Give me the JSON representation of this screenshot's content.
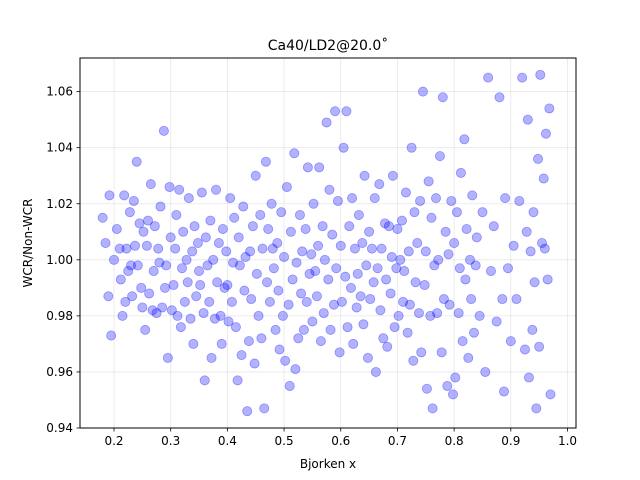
{
  "chart_data": {
    "type": "scatter",
    "title": "Ca40/LD2@20.0˚",
    "xlabel": "Bjorken x",
    "ylabel": "WCR/Non-WCR",
    "xlim": [
      0.14,
      1.015
    ],
    "ylim": [
      0.94,
      1.072
    ],
    "xticks": [
      "0.2",
      "0.3",
      "0.4",
      "0.5",
      "0.6",
      "0.7",
      "0.8",
      "0.9",
      "1.0"
    ],
    "yticks": [
      "0.94",
      "0.96",
      "0.98",
      "1.00",
      "1.02",
      "1.04",
      "1.06"
    ],
    "grid": true,
    "point_color": "#0000ff",
    "series": [
      {
        "points": [
          [
            0.18,
            1.015
          ],
          [
            0.185,
            1.006
          ],
          [
            0.19,
            0.987
          ],
          [
            0.192,
            1.023
          ],
          [
            0.195,
            0.973
          ],
          [
            0.2,
            1.0
          ],
          [
            0.205,
            1.011
          ],
          [
            0.21,
            1.004
          ],
          [
            0.212,
            0.993
          ],
          [
            0.215,
            0.98
          ],
          [
            0.218,
            1.023
          ],
          [
            0.22,
            0.985
          ],
          [
            0.222,
            1.004
          ],
          [
            0.225,
            0.996
          ],
          [
            0.228,
            1.017
          ],
          [
            0.23,
            0.998
          ],
          [
            0.232,
            0.987
          ],
          [
            0.235,
            1.021
          ],
          [
            0.237,
            1.005
          ],
          [
            0.24,
            1.035
          ],
          [
            0.242,
            0.998
          ],
          [
            0.245,
            1.013
          ],
          [
            0.248,
            0.99
          ],
          [
            0.25,
            0.983
          ],
          [
            0.252,
            1.01
          ],
          [
            0.255,
            0.975
          ],
          [
            0.258,
            1.005
          ],
          [
            0.26,
            1.014
          ],
          [
            0.262,
            0.988
          ],
          [
            0.265,
            1.027
          ],
          [
            0.268,
            0.982
          ],
          [
            0.27,
            0.996
          ],
          [
            0.272,
            1.012
          ],
          [
            0.275,
            0.981
          ],
          [
            0.278,
            1.004
          ],
          [
            0.28,
            0.999
          ],
          [
            0.282,
            1.019
          ],
          [
            0.285,
            0.983
          ],
          [
            0.288,
            1.046
          ],
          [
            0.29,
            0.99
          ],
          [
            0.292,
            0.998
          ],
          [
            0.295,
            0.965
          ],
          [
            0.298,
            1.026
          ],
          [
            0.3,
            1.008
          ],
          [
            0.302,
            0.982
          ],
          [
            0.305,
            0.991
          ],
          [
            0.308,
            1.004
          ],
          [
            0.31,
            1.016
          ],
          [
            0.312,
            0.98
          ],
          [
            0.315,
            1.025
          ],
          [
            0.318,
            0.976
          ],
          [
            0.32,
            0.997
          ],
          [
            0.322,
            1.01
          ],
          [
            0.325,
            0.985
          ],
          [
            0.328,
            1.0
          ],
          [
            0.33,
            0.992
          ],
          [
            0.332,
            1.022
          ],
          [
            0.335,
            0.979
          ],
          [
            0.338,
            1.003
          ],
          [
            0.34,
            0.97
          ],
          [
            0.342,
            1.012
          ],
          [
            0.345,
            0.987
          ],
          [
            0.348,
            1.006
          ],
          [
            0.35,
            0.996
          ],
          [
            0.352,
            0.991
          ],
          [
            0.355,
            1.024
          ],
          [
            0.358,
            0.981
          ],
          [
            0.36,
            0.957
          ],
          [
            0.362,
            1.008
          ],
          [
            0.365,
            0.998
          ],
          [
            0.368,
            0.985
          ],
          [
            0.37,
            1.014
          ],
          [
            0.372,
            0.965
          ],
          [
            0.375,
            1.0
          ],
          [
            0.378,
            0.979
          ],
          [
            0.38,
            1.025
          ],
          [
            0.382,
            0.992
          ],
          [
            0.385,
            1.006
          ],
          [
            0.388,
            0.98
          ],
          [
            0.39,
            0.97
          ],
          [
            0.392,
            1.011
          ],
          [
            0.395,
            0.99
          ],
          [
            0.398,
            1.003
          ],
          [
            0.4,
            0.991
          ],
          [
            0.402,
            0.978
          ],
          [
            0.405,
            1.022
          ],
          [
            0.408,
            0.985
          ],
          [
            0.41,
            0.999
          ],
          [
            0.412,
            1.015
          ],
          [
            0.415,
            0.976
          ],
          [
            0.418,
            0.957
          ],
          [
            0.42,
            1.008
          ],
          [
            0.422,
            0.998
          ],
          [
            0.425,
            0.966
          ],
          [
            0.428,
            1.019
          ],
          [
            0.43,
            0.989
          ],
          [
            0.432,
            1.001
          ],
          [
            0.435,
            0.946
          ],
          [
            0.438,
            0.971
          ],
          [
            0.44,
            1.003
          ],
          [
            0.442,
            0.986
          ],
          [
            0.445,
            1.012
          ],
          [
            0.448,
            0.963
          ],
          [
            0.45,
            1.03
          ],
          [
            0.452,
            0.995
          ],
          [
            0.455,
            0.98
          ],
          [
            0.458,
            1.016
          ],
          [
            0.46,
            0.972
          ],
          [
            0.462,
            1.004
          ],
          [
            0.465,
            0.947
          ],
          [
            0.468,
            1.035
          ],
          [
            0.47,
            0.992
          ],
          [
            0.472,
            1.011
          ],
          [
            0.475,
            0.985
          ],
          [
            0.478,
            1.02
          ],
          [
            0.48,
            1.004
          ],
          [
            0.482,
            0.997
          ],
          [
            0.485,
            0.975
          ],
          [
            0.488,
            1.006
          ],
          [
            0.49,
            0.989
          ],
          [
            0.492,
            0.968
          ],
          [
            0.495,
            1.017
          ],
          [
            0.498,
            0.98
          ],
          [
            0.5,
            1.001
          ],
          [
            0.502,
            0.964
          ],
          [
            0.505,
            1.026
          ],
          [
            0.508,
            0.984
          ],
          [
            0.51,
            0.955
          ],
          [
            0.512,
            1.01
          ],
          [
            0.515,
            0.993
          ],
          [
            0.518,
            1.038
          ],
          [
            0.52,
            0.961
          ],
          [
            0.522,
            0.999
          ],
          [
            0.525,
            0.972
          ],
          [
            0.528,
            1.016
          ],
          [
            0.53,
            0.988
          ],
          [
            0.532,
            1.003
          ],
          [
            0.535,
            0.975
          ],
          [
            0.538,
            1.011
          ],
          [
            0.54,
            0.985
          ],
          [
            0.542,
            1.033
          ],
          [
            0.545,
            0.995
          ],
          [
            0.548,
            1.002
          ],
          [
            0.55,
            0.978
          ],
          [
            0.552,
            1.02
          ],
          [
            0.555,
            0.996
          ],
          [
            0.558,
            0.987
          ],
          [
            0.56,
            1.005
          ],
          [
            0.562,
            1.033
          ],
          [
            0.565,
            0.971
          ],
          [
            0.568,
            1.012
          ],
          [
            0.57,
            0.981
          ],
          [
            0.572,
            1.0
          ],
          [
            0.575,
            1.049
          ],
          [
            0.578,
            0.993
          ],
          [
            0.58,
            1.025
          ],
          [
            0.582,
            0.975
          ],
          [
            0.585,
            1.009
          ],
          [
            0.588,
            0.984
          ],
          [
            0.59,
            1.053
          ],
          [
            0.592,
            0.997
          ],
          [
            0.595,
            1.021
          ],
          [
            0.598,
            0.967
          ],
          [
            0.6,
            1.005
          ],
          [
            0.602,
            0.985
          ],
          [
            0.605,
            1.04
          ],
          [
            0.608,
            0.994
          ],
          [
            0.61,
            1.053
          ],
          [
            0.612,
            0.976
          ],
          [
            0.615,
            1.012
          ],
          [
            0.618,
            0.99
          ],
          [
            0.62,
            1.022
          ],
          [
            0.622,
            0.97
          ],
          [
            0.625,
            1.004
          ],
          [
            0.628,
            0.983
          ],
          [
            0.63,
            0.995
          ],
          [
            0.632,
            1.016
          ],
          [
            0.635,
            0.987
          ],
          [
            0.638,
            1.006
          ],
          [
            0.64,
            0.977
          ],
          [
            0.642,
            1.03
          ],
          [
            0.645,
            0.998
          ],
          [
            0.648,
            0.965
          ],
          [
            0.65,
            1.01
          ],
          [
            0.652,
            0.986
          ],
          [
            0.655,
            1.004
          ],
          [
            0.658,
            0.992
          ],
          [
            0.66,
            1.022
          ],
          [
            0.662,
            0.96
          ],
          [
            0.665,
            0.997
          ],
          [
            0.668,
            1.027
          ],
          [
            0.67,
            0.982
          ],
          [
            0.672,
            1.004
          ],
          [
            0.675,
            0.972
          ],
          [
            0.678,
            1.013
          ],
          [
            0.68,
            0.993
          ],
          [
            0.682,
            0.969
          ],
          [
            0.685,
            1.012
          ],
          [
            0.688,
            0.988
          ],
          [
            0.69,
            1.001
          ],
          [
            0.692,
            1.03
          ],
          [
            0.695,
            0.976
          ],
          [
            0.698,
            0.997
          ],
          [
            0.7,
            1.011
          ],
          [
            0.702,
            0.98
          ],
          [
            0.705,
            1.0
          ],
          [
            0.708,
            1.014
          ],
          [
            0.71,
            0.985
          ],
          [
            0.712,
            0.996
          ],
          [
            0.715,
            1.024
          ],
          [
            0.718,
            0.974
          ],
          [
            0.72,
            1.003
          ],
          [
            0.722,
            0.984
          ],
          [
            0.725,
            1.04
          ],
          [
            0.728,
            0.964
          ],
          [
            0.73,
            1.017
          ],
          [
            0.732,
            0.992
          ],
          [
            0.735,
            1.006
          ],
          [
            0.738,
            0.981
          ],
          [
            0.74,
            1.021
          ],
          [
            0.742,
            0.967
          ],
          [
            0.745,
            1.06
          ],
          [
            0.748,
            0.991
          ],
          [
            0.75,
            1.003
          ],
          [
            0.752,
            0.954
          ],
          [
            0.755,
            1.028
          ],
          [
            0.758,
            0.98
          ],
          [
            0.76,
            1.015
          ],
          [
            0.762,
            0.947
          ],
          [
            0.765,
            0.998
          ],
          [
            0.768,
            1.022
          ],
          [
            0.77,
            0.981
          ],
          [
            0.772,
            1.0
          ],
          [
            0.775,
            1.037
          ],
          [
            0.778,
            0.967
          ],
          [
            0.78,
            1.058
          ],
          [
            0.782,
            0.986
          ],
          [
            0.785,
            1.01
          ],
          [
            0.788,
            0.955
          ],
          [
            0.79,
            1.002
          ],
          [
            0.792,
            0.984
          ],
          [
            0.795,
            1.021
          ],
          [
            0.798,
            0.952
          ],
          [
            0.8,
            1.006
          ],
          [
            0.802,
            0.958
          ],
          [
            0.805,
            1.017
          ],
          [
            0.808,
            0.981
          ],
          [
            0.81,
            0.997
          ],
          [
            0.812,
            1.031
          ],
          [
            0.815,
            0.971
          ],
          [
            0.818,
            1.043
          ],
          [
            0.82,
            0.993
          ],
          [
            0.822,
            1.011
          ],
          [
            0.825,
            0.965
          ],
          [
            0.828,
            1.0
          ],
          [
            0.83,
            0.986
          ],
          [
            0.832,
            1.023
          ],
          [
            0.835,
            0.974
          ],
          [
            0.838,
            0.998
          ],
          [
            0.84,
            1.008
          ],
          [
            0.845,
            0.98
          ],
          [
            0.85,
            1.017
          ],
          [
            0.855,
            0.96
          ],
          [
            0.86,
            1.065
          ],
          [
            0.865,
            0.996
          ],
          [
            0.87,
            1.012
          ],
          [
            0.875,
            0.978
          ],
          [
            0.88,
            1.058
          ],
          [
            0.885,
            0.986
          ],
          [
            0.888,
            0.953
          ],
          [
            0.89,
            1.022
          ],
          [
            0.895,
            0.997
          ],
          [
            0.9,
            0.971
          ],
          [
            0.905,
            1.005
          ],
          [
            0.91,
            0.986
          ],
          [
            0.915,
            1.021
          ],
          [
            0.92,
            1.065
          ],
          [
            0.925,
            0.968
          ],
          [
            0.928,
            1.01
          ],
          [
            0.93,
            1.05
          ],
          [
            0.932,
            0.958
          ],
          [
            0.935,
            1.003
          ],
          [
            0.938,
            0.975
          ],
          [
            0.94,
            1.017
          ],
          [
            0.942,
            0.992
          ],
          [
            0.945,
            0.947
          ],
          [
            0.948,
            1.036
          ],
          [
            0.95,
            0.969
          ],
          [
            0.952,
            1.066
          ],
          [
            0.955,
            1.006
          ],
          [
            0.958,
            1.029
          ],
          [
            0.96,
            1.004
          ],
          [
            0.962,
            1.045
          ],
          [
            0.965,
            0.993
          ],
          [
            0.968,
            1.054
          ],
          [
            0.97,
            0.952
          ]
        ]
      }
    ]
  }
}
